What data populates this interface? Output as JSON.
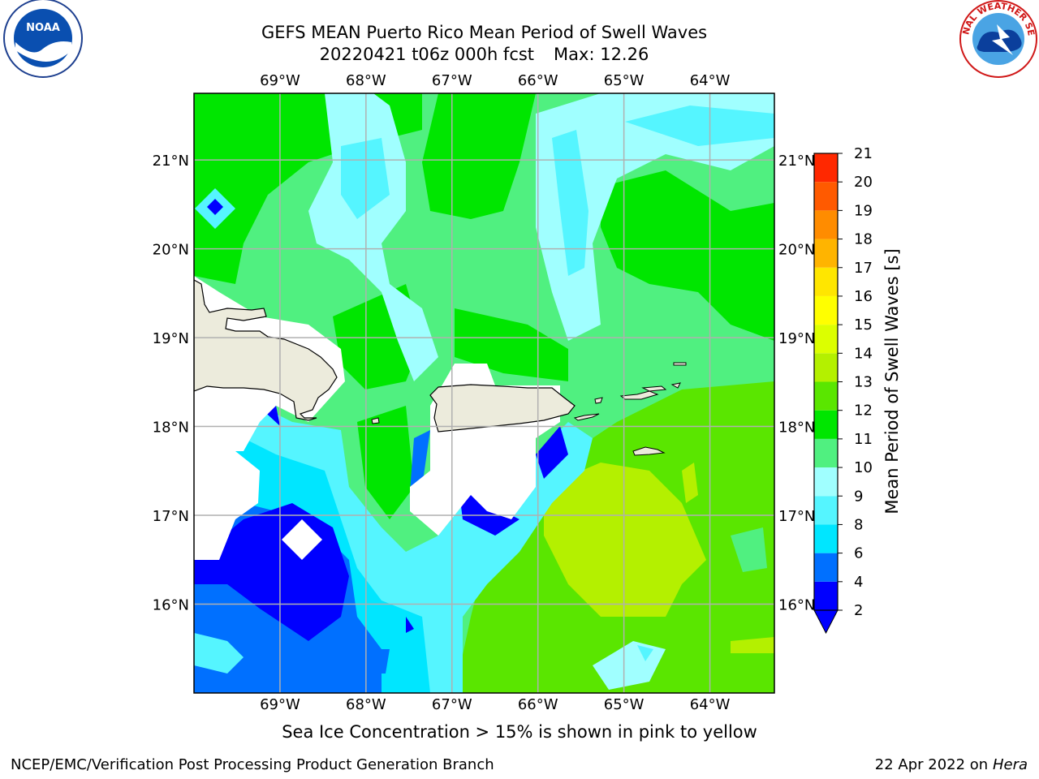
{
  "header": {
    "title_line1": "GEFS MEAN Puerto Rico Mean Period of Swell Waves",
    "title_line2_a": "20220421 t06z 000h fcst",
    "title_line2_b": "Max: 12.26"
  },
  "axes": {
    "lon_labels": [
      "69°W",
      "68°W",
      "67°W",
      "66°W",
      "65°W",
      "64°W"
    ],
    "lat_labels": [
      "21°N",
      "20°N",
      "19°N",
      "18°N",
      "17°N",
      "16°N"
    ],
    "lon_range": [
      -70.0,
      -63.25
    ],
    "lat_range": [
      15.0,
      21.75
    ]
  },
  "colorbar": {
    "label": "Mean Period of Swell Waves [s]",
    "ticks": [
      2,
      4,
      6,
      8,
      9,
      10,
      11,
      12,
      13,
      14,
      15,
      16,
      17,
      18,
      19,
      20,
      21
    ],
    "colors": [
      "#0000ff",
      "#0070ff",
      "#00e6ff",
      "#55f5ff",
      "#a0ffff",
      "#50f080",
      "#00e600",
      "#5ae600",
      "#b4f000",
      "#dcff00",
      "#ffff00",
      "#ffe600",
      "#ffb400",
      "#ff8c00",
      "#ff5a00",
      "#ff2800"
    ],
    "extend_color": "#0000ff"
  },
  "note": "Sea Ice Concentration > 15% is shown in pink to yellow",
  "footer": {
    "left": "NCEP/EMC/Verification Post Processing Product Generation Branch",
    "date": "22 Apr 2022 on ",
    "host": "Hera"
  },
  "logos": {
    "noaa_text": "NOAA",
    "nws_text": "NATIONAL WEATHER SERVICE"
  }
}
